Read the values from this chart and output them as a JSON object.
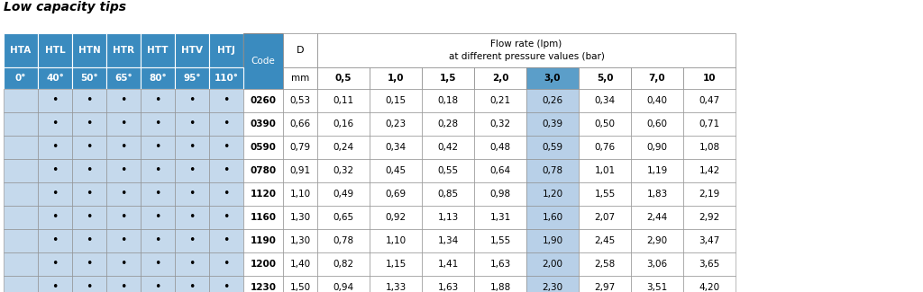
{
  "title": "Low capacity tips",
  "blue_header": "#3A8BBF",
  "blue_header_dark": "#2A6A9A",
  "light_blue_cell": "#C5D9EC",
  "white_cell": "#FFFFFF",
  "highlight_col_header": "#5B9EC9",
  "highlight_col_data": "#B8D0E8",
  "border_color": "#888888",
  "title_color": "#000000",
  "nozzle_headers": [
    "HTA",
    "HTL",
    "HTN",
    "HTR",
    "HTT",
    "HTV",
    "HTJ"
  ],
  "nozzle_angles": [
    "0°",
    "40°",
    "50°",
    "65°",
    "80°",
    "95°",
    "110°"
  ],
  "code_header": "Code",
  "d_header": "D",
  "d_unit": "mm",
  "flow_header_line1": "Flow rate (lpm)",
  "flow_header_line2": "at different pressure values (bar)",
  "pressure_values": [
    "0,5",
    "1,0",
    "1,5",
    "2,0",
    "3,0",
    "5,0",
    "7,0",
    "10"
  ],
  "highlight_pressure": "3,0",
  "codes": [
    "0260",
    "0390",
    "0590",
    "0780",
    "1120",
    "1160",
    "1190",
    "1200",
    "1230"
  ],
  "diameters": [
    "0,53",
    "0,66",
    "0,79",
    "0,91",
    "1,10",
    "1,30",
    "1,30",
    "1,40",
    "1,50"
  ],
  "dots": [
    [
      0,
      1,
      1,
      1,
      1,
      1,
      1
    ],
    [
      0,
      1,
      1,
      1,
      1,
      1,
      1
    ],
    [
      0,
      1,
      1,
      1,
      1,
      1,
      1
    ],
    [
      0,
      1,
      1,
      1,
      1,
      1,
      1
    ],
    [
      0,
      1,
      1,
      1,
      1,
      1,
      1
    ],
    [
      0,
      1,
      1,
      1,
      1,
      1,
      1
    ],
    [
      0,
      1,
      1,
      1,
      1,
      1,
      1
    ],
    [
      0,
      1,
      1,
      1,
      1,
      1,
      1
    ],
    [
      0,
      1,
      1,
      1,
      1,
      1,
      1
    ]
  ],
  "flow_values": [
    [
      "0,11",
      "0,15",
      "0,18",
      "0,21",
      "0,26",
      "0,34",
      "0,40",
      "0,47"
    ],
    [
      "0,16",
      "0,23",
      "0,28",
      "0,32",
      "0,39",
      "0,50",
      "0,60",
      "0,71"
    ],
    [
      "0,24",
      "0,34",
      "0,42",
      "0,48",
      "0,59",
      "0,76",
      "0,90",
      "1,08"
    ],
    [
      "0,32",
      "0,45",
      "0,55",
      "0,64",
      "0,78",
      "1,01",
      "1,19",
      "1,42"
    ],
    [
      "0,49",
      "0,69",
      "0,85",
      "0,98",
      "1,20",
      "1,55",
      "1,83",
      "2,19"
    ],
    [
      "0,65",
      "0,92",
      "1,13",
      "1,31",
      "1,60",
      "2,07",
      "2,44",
      "2,92"
    ],
    [
      "0,78",
      "1,10",
      "1,34",
      "1,55",
      "1,90",
      "2,45",
      "2,90",
      "3,47"
    ],
    [
      "0,82",
      "1,15",
      "1,41",
      "1,63",
      "2,00",
      "2,58",
      "3,06",
      "3,65"
    ],
    [
      "0,94",
      "1,33",
      "1,63",
      "1,88",
      "2,30",
      "2,97",
      "3,51",
      "4,20"
    ]
  ]
}
